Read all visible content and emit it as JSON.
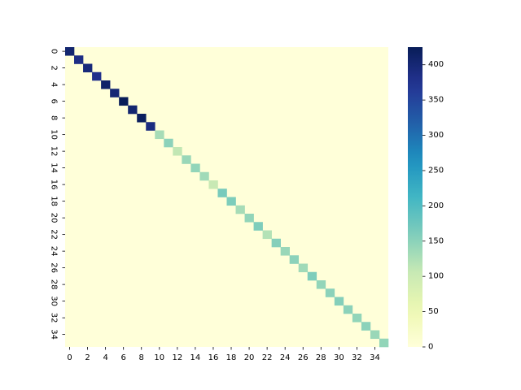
{
  "chart_data": {
    "type": "heatmap",
    "title": "",
    "xlabel": "",
    "ylabel": "",
    "size": 36,
    "x_tick_labels": [
      "0",
      "2",
      "4",
      "6",
      "8",
      "10",
      "12",
      "14",
      "16",
      "18",
      "20",
      "22",
      "24",
      "26",
      "28",
      "30",
      "32",
      "34"
    ],
    "y_tick_labels": [
      "0",
      "2",
      "4",
      "6",
      "8",
      "10",
      "12",
      "14",
      "16",
      "18",
      "20",
      "22",
      "24",
      "26",
      "28",
      "30",
      "32",
      "34"
    ],
    "off_diagonal_value": 0,
    "diagonal_values": [
      405,
      385,
      395,
      380,
      410,
      400,
      425,
      405,
      420,
      390,
      130,
      150,
      110,
      140,
      145,
      135,
      105,
      165,
      160,
      130,
      145,
      160,
      120,
      155,
      140,
      150,
      135,
      160,
      145,
      150,
      155,
      150,
      145,
      150,
      140,
      145
    ],
    "colorbar": {
      "colormap": "YlGnBu",
      "vmin": 0,
      "vmax": 425,
      "ticks": [
        0,
        50,
        100,
        150,
        200,
        250,
        300,
        350,
        400
      ],
      "tick_labels": [
        "0",
        "50",
        "100",
        "150",
        "200",
        "250",
        "300",
        "350",
        "400"
      ]
    }
  }
}
